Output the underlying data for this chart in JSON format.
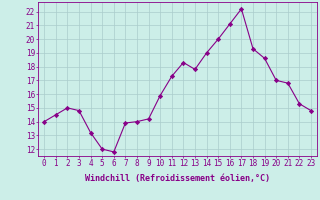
{
  "x": [
    0,
    1,
    2,
    3,
    4,
    5,
    6,
    7,
    8,
    9,
    10,
    11,
    12,
    13,
    14,
    15,
    16,
    17,
    18,
    19,
    20,
    21,
    22,
    23
  ],
  "y": [
    14.0,
    14.5,
    15.0,
    14.8,
    13.2,
    12.0,
    11.8,
    13.9,
    14.0,
    14.2,
    15.9,
    17.3,
    18.3,
    17.8,
    19.0,
    20.0,
    21.1,
    22.2,
    19.3,
    18.6,
    17.0,
    16.8,
    15.3,
    14.8
  ],
  "line_color": "#880088",
  "marker": "D",
  "marker_size": 2.2,
  "bg_color": "#cceee8",
  "grid_color": "#aacccc",
  "xlabel": "Windchill (Refroidissement éolien,°C)",
  "ylabel_ticks": [
    12,
    13,
    14,
    15,
    16,
    17,
    18,
    19,
    20,
    21,
    22
  ],
  "ylim": [
    11.5,
    22.7
  ],
  "xlim": [
    -0.5,
    23.5
  ],
  "tick_color": "#880088",
  "label_color": "#880088",
  "font_size": 5.5,
  "xlabel_font_size": 6.0,
  "lw": 0.8
}
